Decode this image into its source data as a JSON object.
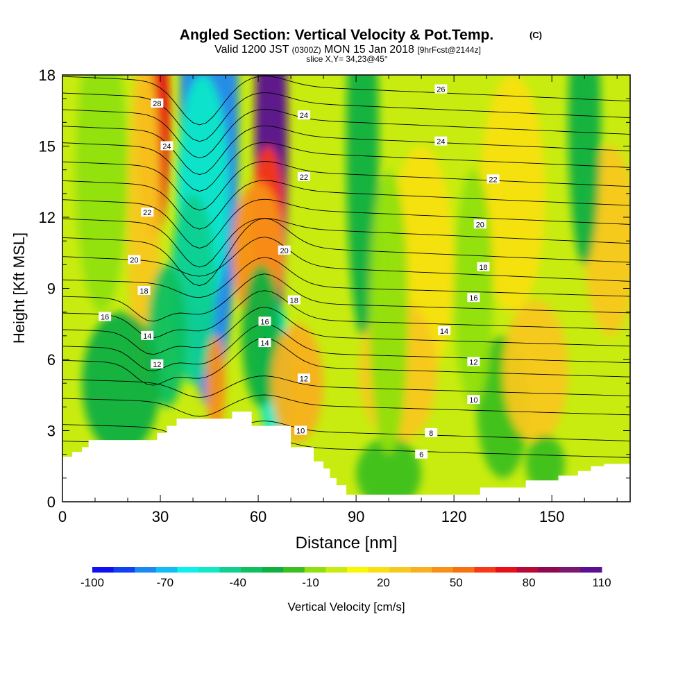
{
  "chart_data": {
    "type": "heatmap",
    "title": "Angled Section: Vertical Velocity & Pot.Temp.",
    "title_suffix": "(C)",
    "subtitle_valid": "Valid 1200 JST",
    "subtitle_z": "(0300Z)",
    "subtitle_date": "MON 15 Jan 2018",
    "subtitle_fcst": "[9hrFcst@2144z]",
    "slice_label": "slice X,Y= 34,23@45°",
    "xlabel": "Distance [nm]",
    "ylabel": "Height [Kft MSL]",
    "xlim": [
      0,
      174
    ],
    "ylim": [
      0,
      18
    ],
    "x_ticks": [
      0,
      30,
      60,
      90,
      120,
      150
    ],
    "y_ticks": [
      0,
      3,
      6,
      9,
      12,
      15,
      18
    ],
    "x_tick_labels": [
      "0",
      "30",
      "60",
      "90",
      "120",
      "150"
    ],
    "y_tick_labels": [
      "0",
      "3",
      "6",
      "9",
      "12",
      "15",
      "18"
    ],
    "colorbar": {
      "label": "Vertical Velocity [cm/s]",
      "min": -100,
      "max": 110,
      "step": 10,
      "tick_labels": [
        "-100",
        "-70",
        "-40",
        "-10",
        "20",
        "50",
        "80",
        "110"
      ],
      "colors": [
        "#1010f0",
        "#1040f0",
        "#1c88f2",
        "#10bef0",
        "#0ef0f0",
        "#10e8c8",
        "#10d090",
        "#10c060",
        "#10b040",
        "#3cc020",
        "#90e010",
        "#c8ec10",
        "#f8f800",
        "#f8e010",
        "#f8c820",
        "#f8b020",
        "#f89018",
        "#f87010",
        "#f83818",
        "#e81018",
        "#b80838",
        "#900850",
        "#7a1870",
        "#5a1090"
      ]
    },
    "terrain_profile_kft": [
      [
        0,
        1.9
      ],
      [
        3,
        1.9
      ],
      [
        3,
        2.1
      ],
      [
        6,
        2.1
      ],
      [
        6,
        2.3
      ],
      [
        8,
        2.3
      ],
      [
        8,
        2.6
      ],
      [
        29,
        2.6
      ],
      [
        29,
        2.9
      ],
      [
        32,
        2.9
      ],
      [
        32,
        3.2
      ],
      [
        35,
        3.2
      ],
      [
        35,
        3.5
      ],
      [
        52,
        3.5
      ],
      [
        52,
        3.8
      ],
      [
        58,
        3.8
      ],
      [
        58,
        3.2
      ],
      [
        70,
        3.2
      ],
      [
        70,
        2.3
      ],
      [
        77,
        2.3
      ],
      [
        77,
        1.7
      ],
      [
        80,
        1.7
      ],
      [
        80,
        1.4
      ],
      [
        82,
        1.4
      ],
      [
        82,
        1.0
      ],
      [
        84,
        1.0
      ],
      [
        84,
        0.7
      ],
      [
        87,
        0.7
      ],
      [
        87,
        0.3
      ],
      [
        128,
        0.3
      ],
      [
        128,
        0.6
      ],
      [
        142,
        0.6
      ],
      [
        142,
        0.9
      ],
      [
        152,
        0.9
      ],
      [
        152,
        1.1
      ],
      [
        158,
        1.1
      ],
      [
        158,
        1.3
      ],
      [
        162,
        1.3
      ],
      [
        162,
        1.5
      ],
      [
        166,
        1.5
      ],
      [
        166,
        1.6
      ],
      [
        174,
        1.6
      ]
    ],
    "velocity_features": [
      {
        "x": 45,
        "y": 16,
        "dx": 9,
        "dy": 12,
        "value": -80
      },
      {
        "x": 43,
        "y": 13,
        "dx": 8,
        "dy": 5,
        "value": -50
      },
      {
        "x": 40,
        "y": 9,
        "dx": 7,
        "dy": 4,
        "value": -40
      },
      {
        "x": 64,
        "y": 15,
        "dx": 5,
        "dy": 9,
        "value": 110
      },
      {
        "x": 63,
        "y": 12,
        "dx": 5,
        "dy": 3,
        "value": 60
      },
      {
        "x": 60,
        "y": 10.5,
        "dx": 8,
        "dy": 3,
        "value": 40
      },
      {
        "x": 28,
        "y": 16,
        "dx": 5,
        "dy": 5,
        "value": 70
      },
      {
        "x": 25,
        "y": 12,
        "dx": 5,
        "dy": 7,
        "value": 30
      },
      {
        "x": 65,
        "y": 5.5,
        "dx": 5,
        "dy": 3,
        "value": -50
      },
      {
        "x": 61,
        "y": 7,
        "dx": 6,
        "dy": 3,
        "value": -30
      },
      {
        "x": 32,
        "y": 7,
        "dx": 6,
        "dy": 3,
        "value": -35
      },
      {
        "x": 18,
        "y": 5,
        "dx": 12,
        "dy": 3,
        "value": -25
      },
      {
        "x": 47,
        "y": 5,
        "dx": 3,
        "dy": 2,
        "value": 40
      },
      {
        "x": 72,
        "y": 5,
        "dx": 8,
        "dy": 2.5,
        "value": 35
      },
      {
        "x": 92,
        "y": 15,
        "dx": 5,
        "dy": 8,
        "value": -25
      },
      {
        "x": 110,
        "y": 10,
        "dx": 10,
        "dy": 5,
        "value": 15
      },
      {
        "x": 103,
        "y": 5.5,
        "dx": 12,
        "dy": 3,
        "value": 25
      },
      {
        "x": 100,
        "y": 1.2,
        "dx": 10,
        "dy": 1.5,
        "value": -20
      },
      {
        "x": 135,
        "y": 4,
        "dx": 8,
        "dy": 3,
        "value": -15
      },
      {
        "x": 145,
        "y": 5.5,
        "dx": 10,
        "dy": 3,
        "value": 30
      },
      {
        "x": 148,
        "y": 1.6,
        "dx": 6,
        "dy": 1.2,
        "value": -20
      },
      {
        "x": 168,
        "y": 11,
        "dx": 8,
        "dy": 4,
        "value": 25
      },
      {
        "x": 138,
        "y": 13,
        "dx": 10,
        "dy": 5,
        "value": 20
      },
      {
        "x": 160,
        "y": 16,
        "dx": 5,
        "dy": 6,
        "value": -25
      },
      {
        "x": 126,
        "y": 9,
        "dx": 6,
        "dy": 5,
        "value": -10
      },
      {
        "x": 100,
        "y": 8,
        "dx": 6,
        "dy": 6,
        "value": -10
      },
      {
        "x": 12,
        "y": 14,
        "dx": 8,
        "dy": 6,
        "value": -10
      }
    ],
    "isotherm_labels": [
      {
        "text": "28",
        "x": 29,
        "y": 16.8
      },
      {
        "text": "24",
        "x": 32,
        "y": 15.0
      },
      {
        "text": "22",
        "x": 26,
        "y": 12.2
      },
      {
        "text": "20",
        "x": 22,
        "y": 10.2
      },
      {
        "text": "18",
        "x": 25,
        "y": 8.9
      },
      {
        "text": "16",
        "x": 13,
        "y": 7.8
      },
      {
        "text": "14",
        "x": 26,
        "y": 7.0
      },
      {
        "text": "12",
        "x": 29,
        "y": 5.8
      },
      {
        "text": "24",
        "x": 74,
        "y": 16.3
      },
      {
        "text": "22",
        "x": 74,
        "y": 13.7
      },
      {
        "text": "20",
        "x": 68,
        "y": 10.6
      },
      {
        "text": "18",
        "x": 71,
        "y": 8.5
      },
      {
        "text": "16",
        "x": 62,
        "y": 7.6
      },
      {
        "text": "14",
        "x": 62,
        "y": 6.7
      },
      {
        "text": "12",
        "x": 74,
        "y": 5.2
      },
      {
        "text": "10",
        "x": 73,
        "y": 3.0
      },
      {
        "text": "26",
        "x": 116,
        "y": 17.4
      },
      {
        "text": "24",
        "x": 116,
        "y": 15.2
      },
      {
        "text": "22",
        "x": 132,
        "y": 13.6
      },
      {
        "text": "20",
        "x": 128,
        "y": 11.7
      },
      {
        "text": "18",
        "x": 129,
        "y": 9.9
      },
      {
        "text": "16",
        "x": 126,
        "y": 8.6
      },
      {
        "text": "14",
        "x": 117,
        "y": 7.2
      },
      {
        "text": "12",
        "x": 126,
        "y": 5.9
      },
      {
        "text": "10",
        "x": 126,
        "y": 4.3
      },
      {
        "text": "8",
        "x": 113,
        "y": 2.9
      },
      {
        "text": "6",
        "x": 110,
        "y": 2.0
      }
    ]
  }
}
